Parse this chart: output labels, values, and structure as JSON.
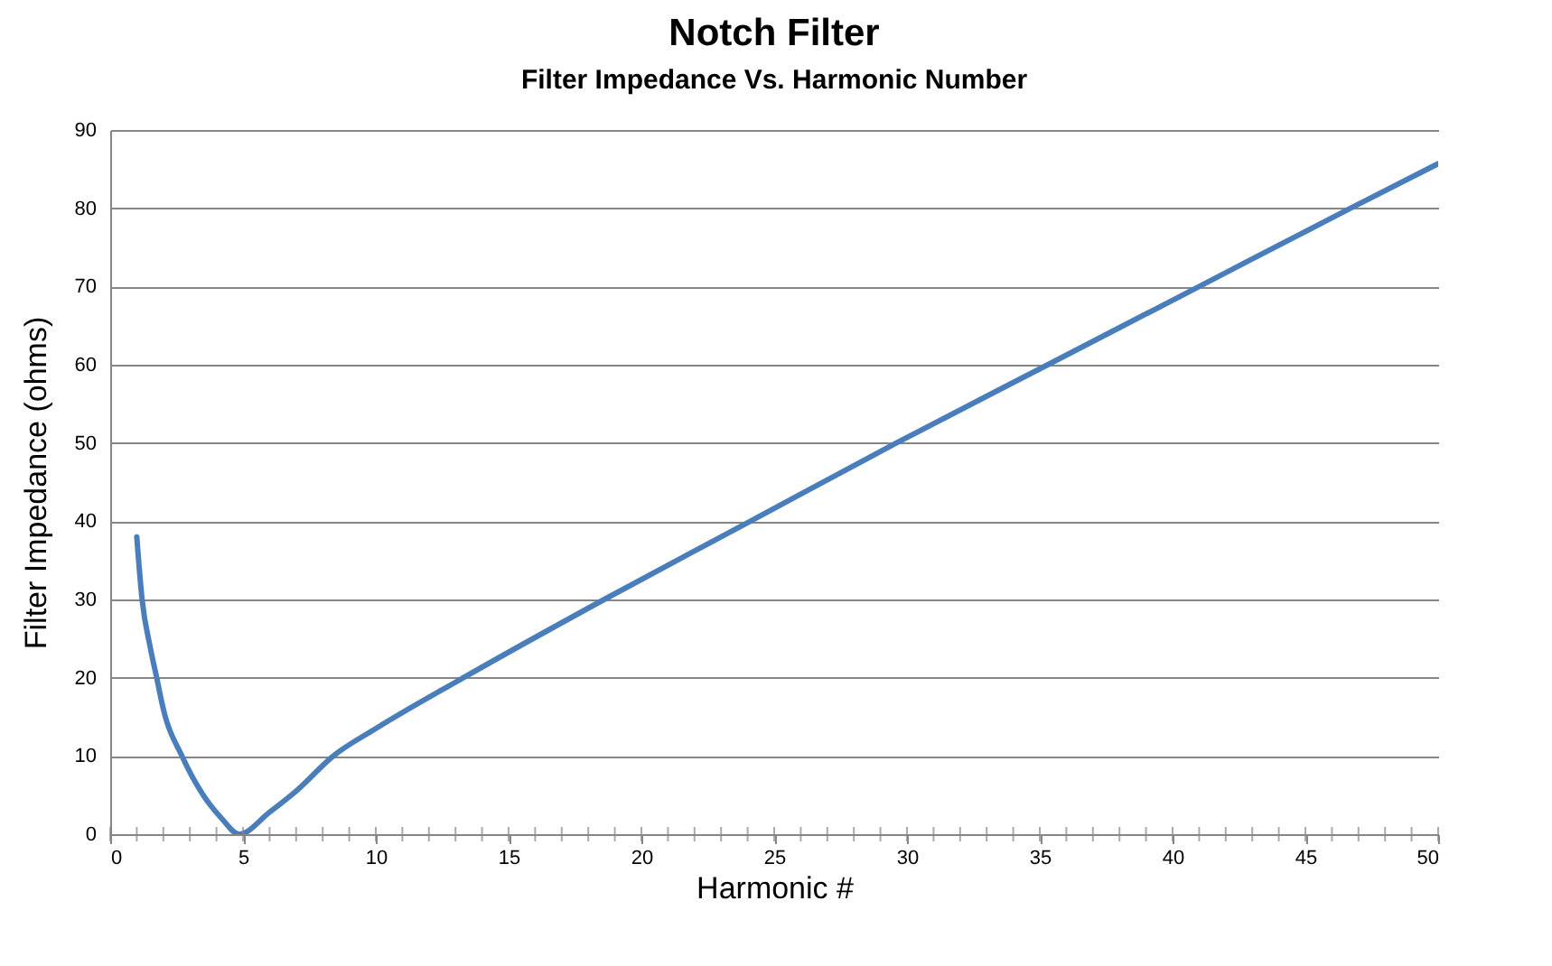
{
  "chart_data": {
    "type": "line",
    "title": "Notch Filter",
    "subtitle": "Filter Impedance Vs. Harmonic Number",
    "xlabel": "Harmonic #",
    "ylabel": "Filter Impedance (ohms)",
    "x": [
      1,
      1.2,
      1.5,
      1.75,
      2,
      2.7,
      3.5,
      4.2,
      4.85,
      6,
      7,
      8.4,
      10,
      13.3,
      18.6,
      24.1,
      29.6,
      35.3,
      41,
      46.7,
      50
    ],
    "series": [
      {
        "color": "#4a7ebb",
        "values": [
          38,
          30,
          24,
          20,
          16,
          10,
          5,
          2,
          0,
          2.8,
          5.5,
          10,
          13.5,
          20,
          30,
          40,
          50,
          60,
          70,
          80,
          85.7
        ]
      }
    ],
    "xlim": [
      0,
      50
    ],
    "xticks": [
      0,
      5,
      10,
      15,
      20,
      25,
      30,
      35,
      40,
      45,
      50
    ],
    "ylim": [
      0,
      90
    ],
    "yticks": [
      0,
      10,
      20,
      30,
      40,
      50,
      60,
      70,
      80,
      90
    ],
    "grid": "y",
    "marker": "none",
    "line_style": "solid"
  }
}
